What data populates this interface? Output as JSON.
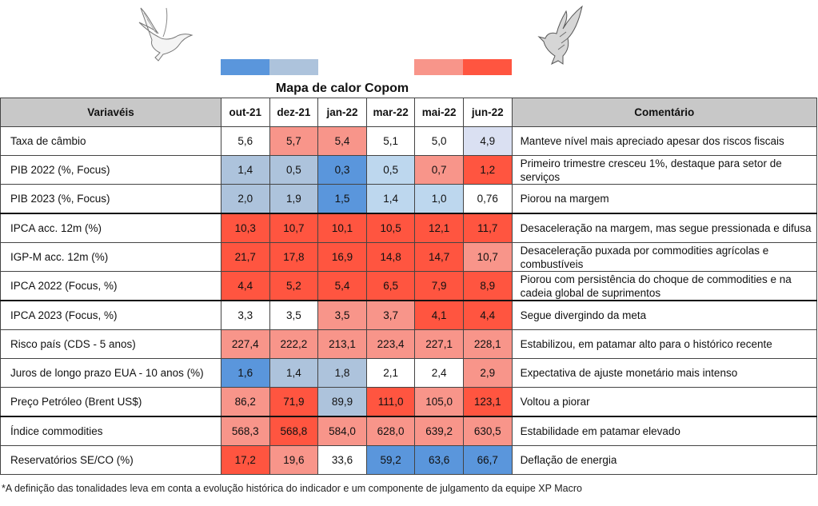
{
  "title": "Mapa de calor Copom",
  "colors": {
    "B": "#5a96dc",
    "G": "#adc3dc",
    "L": "#bdd7ee",
    "V": "#dae0f2",
    "W": "#ffffff",
    "P": "#f8958a",
    "R": "#ff5540"
  },
  "legend": [
    "B",
    "G",
    "P",
    "R"
  ],
  "header": {
    "variable": "Variavéis",
    "comment": "Comentário",
    "months": [
      "out-21",
      "dez-21",
      "jan-22",
      "mar-22",
      "mai-22",
      "jun-22"
    ]
  },
  "rows": [
    {
      "label": "Taxa de câmbio",
      "values": [
        "5,6",
        "5,7",
        "5,4",
        "5,1",
        "5,0",
        "4,9"
      ],
      "shades": [
        "W",
        "P",
        "P",
        "W",
        "W",
        "V"
      ],
      "comment": "Manteve nível mais apreciado apesar dos riscos fiscais"
    },
    {
      "label": "PIB 2022 (%, Focus)",
      "values": [
        "1,4",
        "0,5",
        "0,3",
        "0,5",
        "0,7",
        "1,2"
      ],
      "shades": [
        "G",
        "G",
        "B",
        "L",
        "P",
        "R"
      ],
      "comment": "Primeiro trimestre cresceu 1%, destaque para setor de serviços"
    },
    {
      "label": "PIB 2023 (%, Focus)",
      "values": [
        "2,0",
        "1,9",
        "1,5",
        "1,4",
        "1,0",
        "0,76"
      ],
      "shades": [
        "G",
        "G",
        "B",
        "L",
        "L",
        "W"
      ],
      "comment": "Piorou na margem"
    },
    {
      "label": "IPCA acc. 12m (%)",
      "values": [
        "10,3",
        "10,7",
        "10,1",
        "10,5",
        "12,1",
        "11,7"
      ],
      "shades": [
        "R",
        "R",
        "R",
        "R",
        "R",
        "R"
      ],
      "comment": "Desaceleração na margem, mas segue pressionada e difusa"
    },
    {
      "label": "IGP-M acc. 12m (%)",
      "values": [
        "21,7",
        "17,8",
        "16,9",
        "14,8",
        "14,7",
        "10,7"
      ],
      "shades": [
        "R",
        "R",
        "R",
        "R",
        "R",
        "P"
      ],
      "comment": "Desaceleração puxada por commodities agrícolas e combustíveis"
    },
    {
      "label": "IPCA 2022 (Focus, %)",
      "values": [
        "4,4",
        "5,2",
        "5,4",
        "6,5",
        "7,9",
        "8,9"
      ],
      "shades": [
        "R",
        "R",
        "R",
        "R",
        "R",
        "R"
      ],
      "comment": "Piorou com persistência do choque de commodities e na cadeia global de suprimentos"
    },
    {
      "label": "IPCA 2023 (Focus, %)",
      "values": [
        "3,3",
        "3,5",
        "3,5",
        "3,7",
        "4,1",
        "4,4"
      ],
      "shades": [
        "W",
        "W",
        "P",
        "P",
        "R",
        "R"
      ],
      "comment": "Segue divergindo da meta"
    },
    {
      "label": "Risco país (CDS - 5 anos)",
      "values": [
        "227,4",
        "222,2",
        "213,1",
        "223,4",
        "227,1",
        "228,1"
      ],
      "shades": [
        "P",
        "P",
        "P",
        "P",
        "P",
        "P"
      ],
      "comment": "Estabilizou, em patamar alto para o histórico recente"
    },
    {
      "label": "Juros de longo prazo EUA - 10 anos (%)",
      "values": [
        "1,6",
        "1,4",
        "1,8",
        "2,1",
        "2,4",
        "2,9"
      ],
      "shades": [
        "B",
        "G",
        "G",
        "W",
        "W",
        "P"
      ],
      "comment": "Expectativa de ajuste monetário mais intenso"
    },
    {
      "label": "Preço Petróleo (Brent US$)",
      "values": [
        "86,2",
        "71,9",
        "89,9",
        "111,0",
        "105,0",
        "123,1"
      ],
      "shades": [
        "P",
        "R",
        "G",
        "R",
        "P",
        "R"
      ],
      "comment": "Voltou a piorar"
    },
    {
      "label": "Índice commodities",
      "values": [
        "568,3",
        "568,8",
        "584,0",
        "628,0",
        "639,2",
        "630,5"
      ],
      "shades": [
        "P",
        "R",
        "P",
        "P",
        "P",
        "P"
      ],
      "comment": "Estabilidade em patamar elevado"
    },
    {
      "label": "Reservatórios SE/CO (%)",
      "values": [
        "17,2",
        "19,6",
        "33,6",
        "59,2",
        "63,6",
        "66,7"
      ],
      "shades": [
        "R",
        "P",
        "W",
        "B",
        "B",
        "B"
      ],
      "comment": "Deflação de energia"
    }
  ],
  "footnote": "*A definição das tonalidades leva em conta a evolução histórica do indicador e um componente de julgamento da equipe XP Macro"
}
